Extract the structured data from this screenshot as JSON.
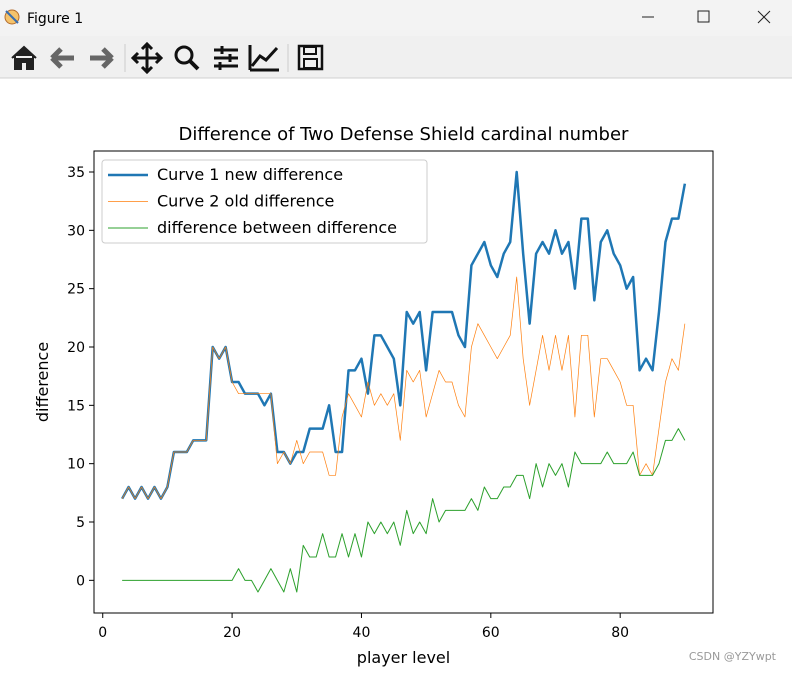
{
  "window": {
    "title": "Figure 1"
  },
  "watermark": "CSDN @YZYwpt",
  "chart_data": {
    "type": "line",
    "title": "Difference of Two Defense Shield cardinal number",
    "xlabel": "player level",
    "ylabel": "difference",
    "legend": "upper left",
    "grid": false,
    "xlim": [
      -1.35,
      94.35
    ],
    "ylim": [
      -2.8,
      36.8
    ],
    "xticks": [
      0,
      20,
      40,
      60,
      80
    ],
    "yticks": [
      0,
      5,
      10,
      15,
      20,
      25,
      30,
      35
    ],
    "x": [
      3,
      4,
      5,
      6,
      7,
      8,
      9,
      10,
      11,
      12,
      13,
      14,
      15,
      16,
      17,
      18,
      19,
      20,
      21,
      22,
      23,
      24,
      25,
      26,
      27,
      28,
      29,
      30,
      31,
      32,
      33,
      34,
      35,
      36,
      37,
      38,
      39,
      40,
      41,
      42,
      43,
      44,
      45,
      46,
      47,
      48,
      49,
      50,
      51,
      52,
      53,
      54,
      55,
      56,
      57,
      58,
      59,
      60,
      61,
      62,
      63,
      64,
      65,
      66,
      67,
      68,
      69,
      70,
      71,
      72,
      73,
      74,
      75,
      76,
      77,
      78,
      79,
      80,
      81,
      82,
      83,
      84,
      85,
      86,
      87,
      88,
      89,
      90
    ],
    "series": [
      {
        "name": "Curve 1 new difference",
        "color": "#1f77b4",
        "width": 2.5,
        "values": [
          7,
          8,
          7,
          8,
          7,
          8,
          7,
          8,
          11,
          11,
          11,
          12,
          12,
          12,
          20,
          19,
          20,
          17,
          17,
          16,
          16,
          16,
          15,
          16,
          11,
          11,
          10,
          11,
          11,
          13,
          13,
          13,
          15,
          11,
          11,
          18,
          18,
          19,
          16,
          21,
          21,
          20,
          19,
          15,
          23,
          22,
          23,
          18,
          23,
          23,
          23,
          23,
          21,
          20,
          27,
          28,
          29,
          27,
          26,
          28,
          29,
          35,
          28,
          22,
          28,
          29,
          28,
          30,
          28,
          29,
          25,
          31,
          31,
          24,
          29,
          30,
          28,
          27,
          25,
          26,
          18,
          19,
          18,
          23,
          29,
          31,
          31,
          34
        ]
      },
      {
        "name": "Curve 2 old difference",
        "color": "#ff7f0e",
        "width": 0.7,
        "values": [
          7,
          8,
          7,
          8,
          7,
          8,
          7,
          8,
          11,
          11,
          11,
          12,
          12,
          12,
          20,
          19,
          20,
          17,
          16,
          16,
          16,
          16,
          16,
          16,
          10,
          11,
          10,
          12,
          10,
          11,
          11,
          11,
          9,
          9,
          14,
          16,
          15,
          14,
          17,
          15,
          16,
          15,
          16,
          12,
          18,
          17,
          18,
          14,
          16,
          18,
          17,
          17,
          15,
          14,
          20,
          22,
          21,
          20,
          19,
          20,
          21,
          26,
          19,
          15,
          18,
          21,
          18,
          21,
          18,
          21,
          14,
          21,
          21,
          14,
          19,
          19,
          18,
          17,
          15,
          15,
          9,
          10,
          9,
          13,
          17,
          19,
          18,
          22
        ]
      },
      {
        "name": "difference between difference",
        "color": "#2ca02c",
        "width": 1,
        "values": [
          0,
          0,
          0,
          0,
          0,
          0,
          0,
          0,
          0,
          0,
          0,
          0,
          0,
          0,
          0,
          0,
          0,
          0,
          1,
          0,
          0,
          -1,
          0,
          1,
          0,
          -1,
          1,
          -1,
          3,
          2,
          2,
          4,
          2,
          2,
          4,
          2,
          4,
          2,
          5,
          4,
          5,
          4,
          5,
          3,
          6,
          4,
          5,
          4,
          7,
          5,
          6,
          6,
          6,
          6,
          7,
          6,
          8,
          7,
          7,
          8,
          8,
          9,
          9,
          7,
          10,
          8,
          10,
          9,
          10,
          8,
          11,
          10,
          10,
          10,
          10,
          11,
          10,
          10,
          10,
          11,
          9,
          9,
          9,
          10,
          12,
          12,
          13,
          12
        ]
      }
    ]
  }
}
